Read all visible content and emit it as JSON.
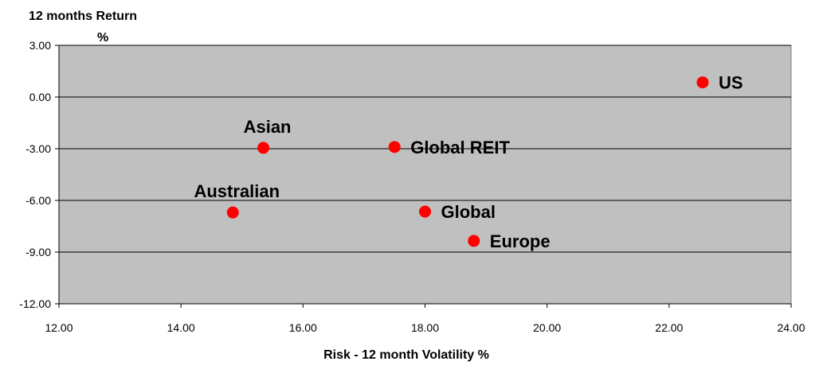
{
  "chart_data": {
    "type": "scatter",
    "title": "",
    "ylabel_line1": "12 months Return",
    "ylabel_line2": "%",
    "xlabel": "Risk - 12 month Volatility %",
    "xlim": [
      12,
      24
    ],
    "ylim": [
      -12,
      3
    ],
    "xticks": [
      12,
      14,
      16,
      18,
      20,
      22,
      24
    ],
    "yticks": [
      3,
      0,
      -3,
      -6,
      -9,
      -12
    ],
    "xtick_labels": [
      "12.00",
      "14.00",
      "16.00",
      "18.00",
      "20.00",
      "22.00",
      "24.00"
    ],
    "ytick_labels": [
      "3.00",
      "0.00",
      "-3.00",
      "-6.00",
      "-9.00",
      "-12.00"
    ],
    "grid": "horizontal",
    "legend": "none",
    "colors": {
      "plot_bg": "#c0c0c0",
      "point": "#ff0000",
      "grid": "#000000"
    },
    "points": [
      {
        "label": "US",
        "x": 22.55,
        "y": 0.85,
        "label_pos": "right"
      },
      {
        "label": "Asian",
        "x": 15.35,
        "y": -2.95,
        "label_pos": "above"
      },
      {
        "label": "Global REIT",
        "x": 17.5,
        "y": -2.9,
        "label_pos": "right"
      },
      {
        "label": "Australian",
        "x": 14.85,
        "y": -6.7,
        "label_pos": "above"
      },
      {
        "label": "Global",
        "x": 18.0,
        "y": -6.65,
        "label_pos": "right"
      },
      {
        "label": "Europe",
        "x": 18.8,
        "y": -8.35,
        "label_pos": "right"
      }
    ]
  }
}
